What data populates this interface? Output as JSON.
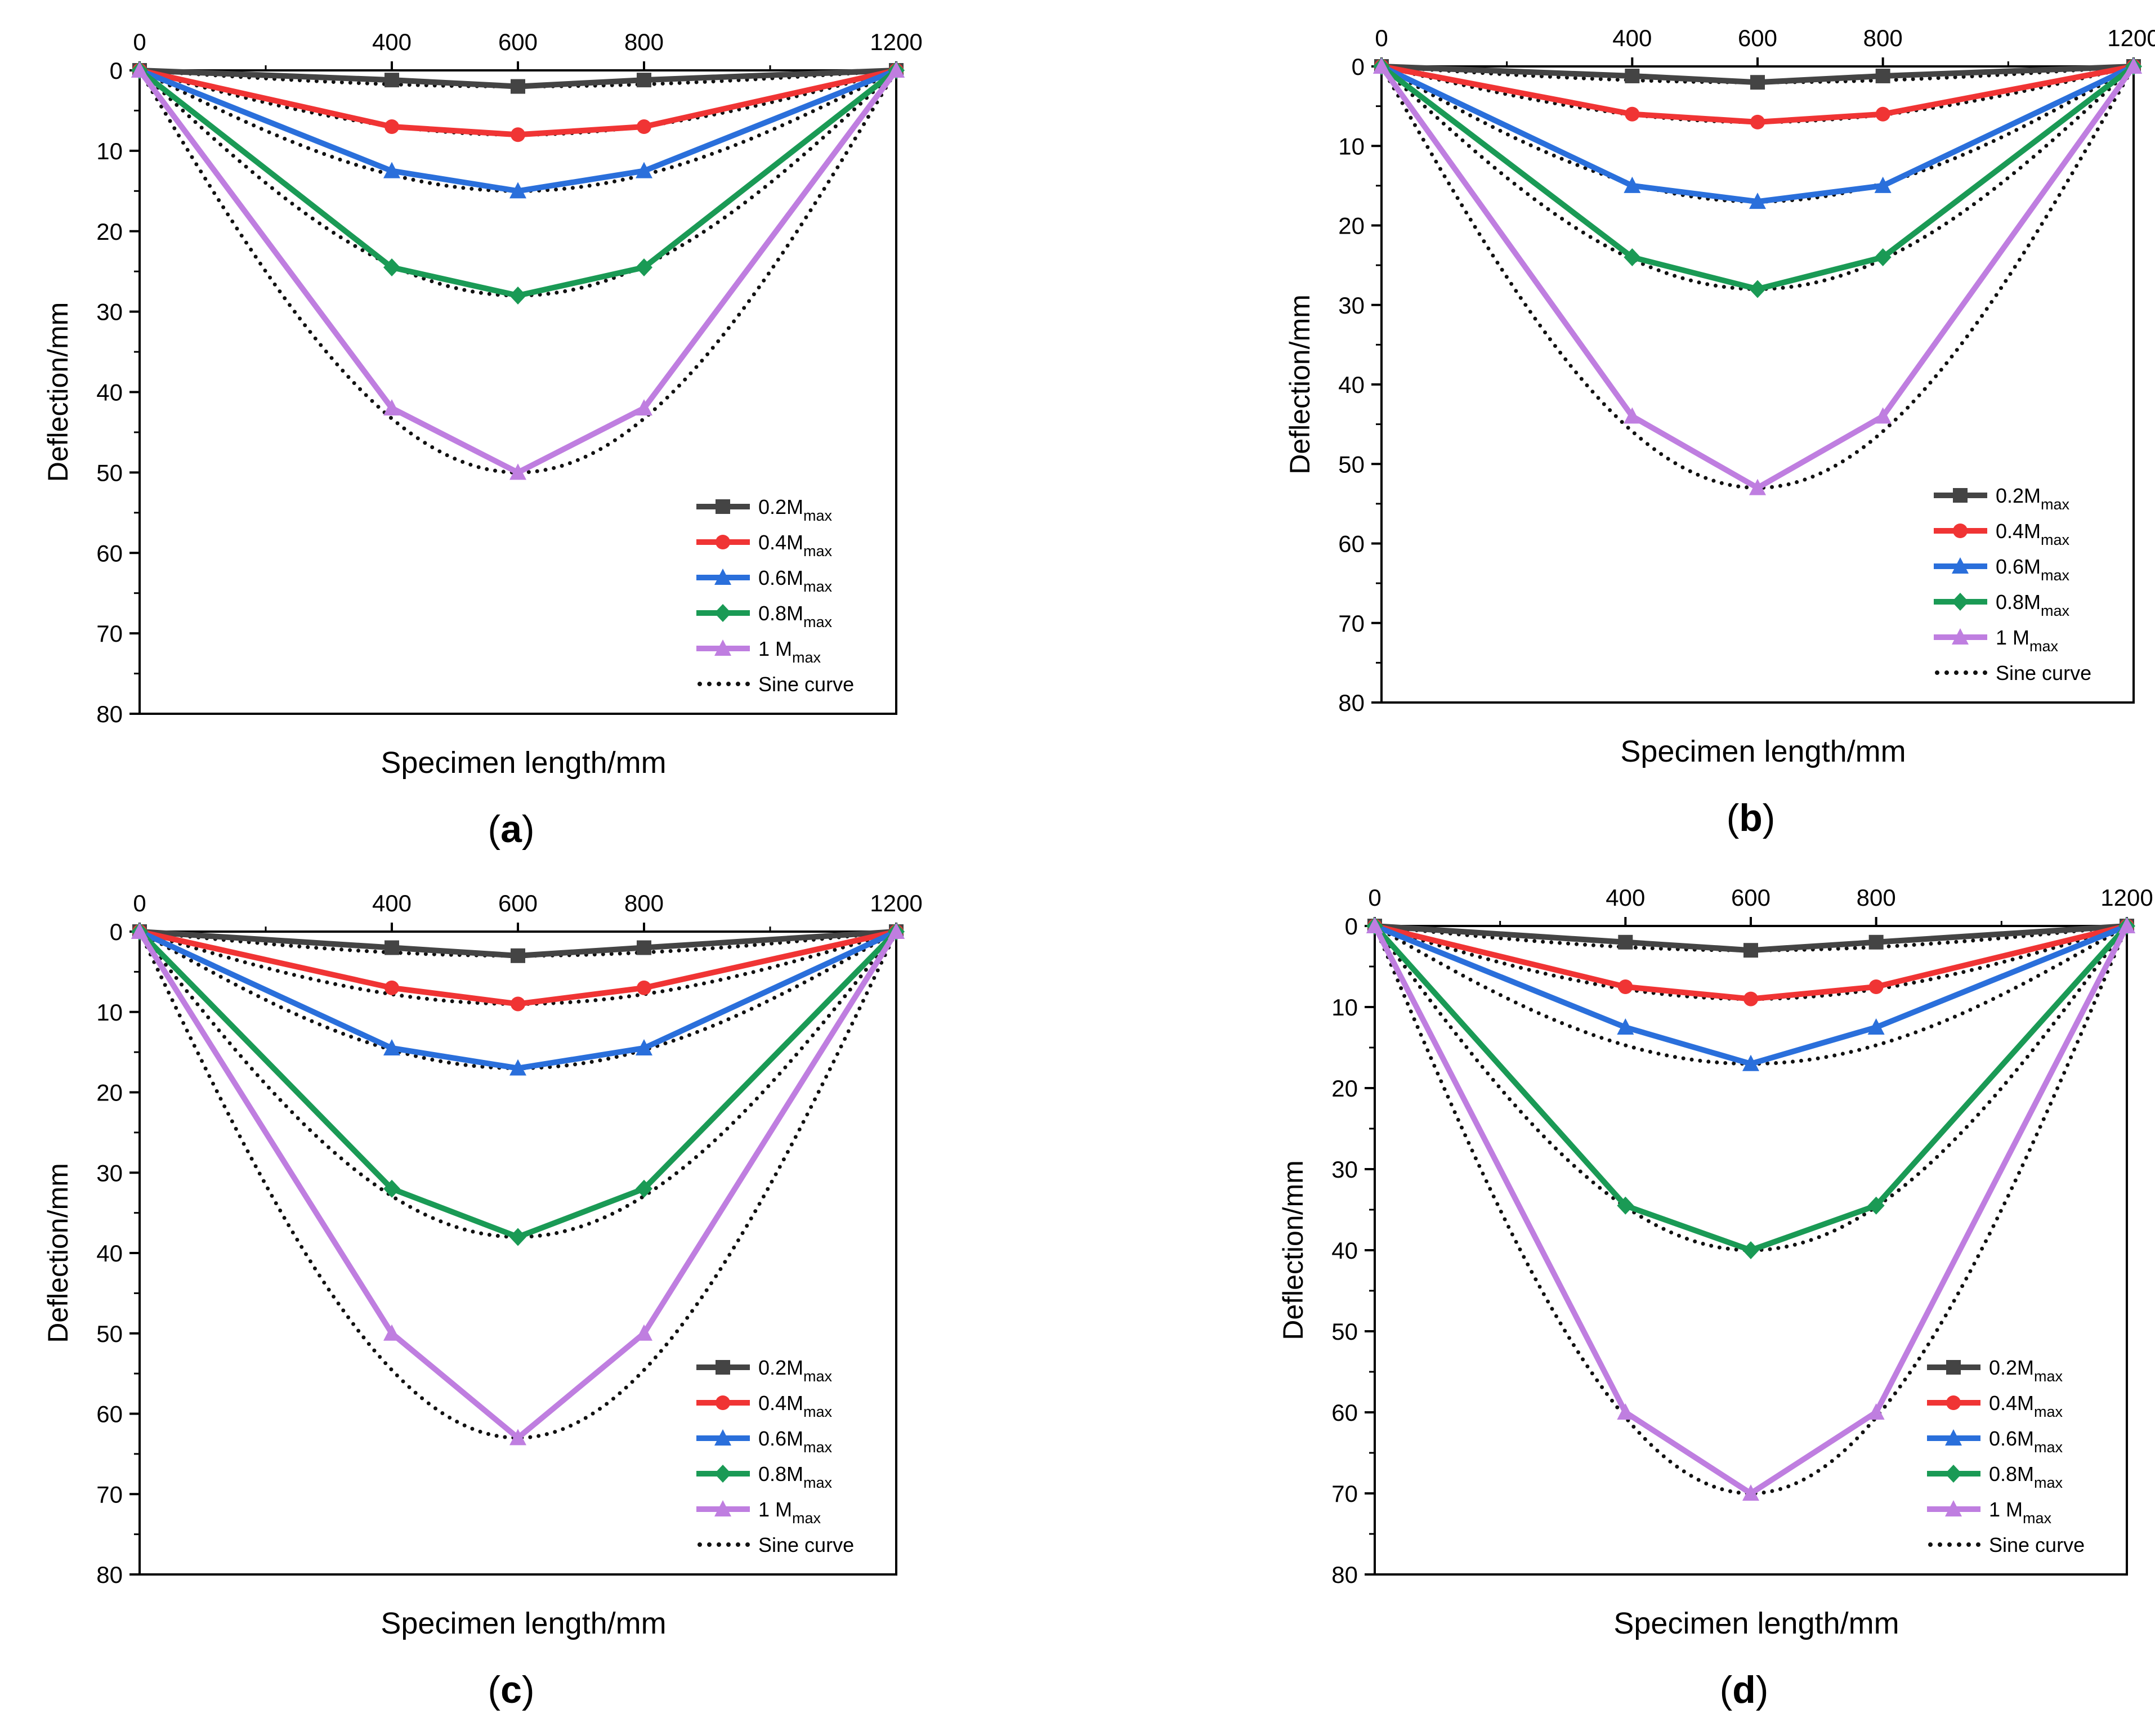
{
  "chart_data": [
    {
      "type": "line",
      "panel": "(a)",
      "panel_letter": "a",
      "xlabel": "Specimen length/mm",
      "ylabel": "Deflection/mm",
      "x_axis_position": "top",
      "y_axis_inverted": true,
      "xlim": [
        0,
        1200
      ],
      "ylim": [
        0,
        80
      ],
      "x_ticks": [
        0,
        400,
        600,
        800,
        1200
      ],
      "y_ticks": [
        0,
        10,
        20,
        30,
        40,
        50,
        60,
        70,
        80
      ],
      "legend_position": "bottom-right",
      "x": [
        0,
        400,
        600,
        800,
        1200
      ],
      "series": [
        {
          "name": "0.2Mmax",
          "base": "0.2M",
          "sub": "max",
          "color": "#444444",
          "marker": "square",
          "values": [
            0,
            1.2,
            2.0,
            1.2,
            0
          ]
        },
        {
          "name": "0.4Mmax",
          "base": "0.4M",
          "sub": "max",
          "color": "#f03434",
          "marker": "circle",
          "values": [
            0,
            7.0,
            8.0,
            7.0,
            0
          ]
        },
        {
          "name": "0.6Mmax",
          "base": "0.6M",
          "sub": "max",
          "color": "#2a6fdb",
          "marker": "triangle",
          "values": [
            0,
            12.5,
            15.0,
            12.5,
            0
          ]
        },
        {
          "name": "0.8Mmax",
          "base": "0.8M",
          "sub": "max",
          "color": "#1a9a55",
          "marker": "diamond",
          "values": [
            0,
            24.5,
            28.0,
            24.5,
            0
          ]
        },
        {
          "name": "1 Mmax",
          "base": "1 M",
          "sub": "max",
          "color": "#bf7ee0",
          "marker": "triangle",
          "values": [
            0,
            42.0,
            50.0,
            42.0,
            0
          ]
        }
      ],
      "sine_curve": {
        "name": "Sine curve",
        "color": "#111111",
        "amplitudes": [
          2.0,
          8.0,
          15.0,
          28.0,
          50.0
        ]
      }
    },
    {
      "type": "line",
      "panel": "(b)",
      "panel_letter": "b",
      "xlabel": "Specimen length/mm",
      "ylabel": "Deflection/mm",
      "x_axis_position": "top",
      "y_axis_inverted": true,
      "xlim": [
        0,
        1200
      ],
      "ylim": [
        0,
        80
      ],
      "x_ticks": [
        0,
        400,
        600,
        800,
        1200
      ],
      "y_ticks": [
        0,
        10,
        20,
        30,
        40,
        50,
        60,
        70,
        80
      ],
      "legend_position": "bottom-right",
      "x": [
        0,
        400,
        600,
        800,
        1200
      ],
      "series": [
        {
          "name": "0.2Mmax",
          "base": "0.2M",
          "sub": "max",
          "color": "#444444",
          "marker": "square",
          "values": [
            0,
            1.2,
            2.0,
            1.2,
            0
          ]
        },
        {
          "name": "0.4Mmax",
          "base": "0.4M",
          "sub": "max",
          "color": "#f03434",
          "marker": "circle",
          "values": [
            0,
            6.0,
            7.0,
            6.0,
            0
          ]
        },
        {
          "name": "0.6Mmax",
          "base": "0.6M",
          "sub": "max",
          "color": "#2a6fdb",
          "marker": "triangle",
          "values": [
            0,
            15.0,
            17.0,
            15.0,
            0
          ]
        },
        {
          "name": "0.8Mmax",
          "base": "0.8M",
          "sub": "max",
          "color": "#1a9a55",
          "marker": "diamond",
          "values": [
            0,
            24.0,
            28.0,
            24.0,
            0
          ]
        },
        {
          "name": "1 Mmax",
          "base": "1 M",
          "sub": "max",
          "color": "#bf7ee0",
          "marker": "triangle",
          "values": [
            0,
            44.0,
            53.0,
            44.0,
            0
          ]
        }
      ],
      "sine_curve": {
        "name": "Sine curve",
        "color": "#111111",
        "amplitudes": [
          2.0,
          7.0,
          17.0,
          28.0,
          53.0
        ]
      }
    },
    {
      "type": "line",
      "panel": "(c)",
      "panel_letter": "c",
      "xlabel": "Specimen length/mm",
      "ylabel": "Deflection/mm",
      "x_axis_position": "top",
      "y_axis_inverted": true,
      "xlim": [
        0,
        1200
      ],
      "ylim": [
        0,
        80
      ],
      "x_ticks": [
        0,
        400,
        600,
        800,
        1200
      ],
      "y_ticks": [
        0,
        10,
        20,
        30,
        40,
        50,
        60,
        70,
        80
      ],
      "legend_position": "bottom-right",
      "x": [
        0,
        400,
        600,
        800,
        1200
      ],
      "series": [
        {
          "name": "0.2Mmax",
          "base": "0.2M",
          "sub": "max",
          "color": "#444444",
          "marker": "square",
          "values": [
            0,
            2.0,
            3.0,
            2.0,
            0
          ]
        },
        {
          "name": "0.4Mmax",
          "base": "0.4M",
          "sub": "max",
          "color": "#f03434",
          "marker": "circle",
          "values": [
            0,
            7.0,
            9.0,
            7.0,
            0
          ]
        },
        {
          "name": "0.6Mmax",
          "base": "0.6M",
          "sub": "max",
          "color": "#2a6fdb",
          "marker": "triangle",
          "values": [
            0,
            14.5,
            17.0,
            14.5,
            0
          ]
        },
        {
          "name": "0.8Mmax",
          "base": "0.8M",
          "sub": "max",
          "color": "#1a9a55",
          "marker": "diamond",
          "values": [
            0,
            32.0,
            38.0,
            32.0,
            0
          ]
        },
        {
          "name": "1 Mmax",
          "base": "1 M",
          "sub": "max",
          "color": "#bf7ee0",
          "marker": "triangle",
          "values": [
            0,
            50.0,
            63.0,
            50.0,
            0
          ]
        }
      ],
      "sine_curve": {
        "name": "Sine curve",
        "color": "#111111",
        "amplitudes": [
          3.0,
          9.0,
          17.0,
          38.0,
          63.0
        ]
      }
    },
    {
      "type": "line",
      "panel": "(d)",
      "panel_letter": "d",
      "xlabel": "Specimen length/mm",
      "ylabel": "Deflection/mm",
      "x_axis_position": "top",
      "y_axis_inverted": true,
      "xlim": [
        0,
        1200
      ],
      "ylim": [
        0,
        80
      ],
      "x_ticks": [
        0,
        400,
        600,
        800,
        1200
      ],
      "y_ticks": [
        0,
        10,
        20,
        30,
        40,
        50,
        60,
        70,
        80
      ],
      "legend_position": "bottom-right",
      "x": [
        0,
        400,
        600,
        800,
        1200
      ],
      "series": [
        {
          "name": "0.2Mmax",
          "base": "0.2M",
          "sub": "max",
          "color": "#444444",
          "marker": "square",
          "values": [
            0,
            2.0,
            3.0,
            2.0,
            0
          ]
        },
        {
          "name": "0.4Mmax",
          "base": "0.4M",
          "sub": "max",
          "color": "#f03434",
          "marker": "circle",
          "values": [
            0,
            7.5,
            9.0,
            7.5,
            0
          ]
        },
        {
          "name": "0.6Mmax",
          "base": "0.6M",
          "sub": "max",
          "color": "#2a6fdb",
          "marker": "triangle",
          "values": [
            0,
            12.5,
            17.0,
            12.5,
            0
          ]
        },
        {
          "name": "0.8Mmax",
          "base": "0.8M",
          "sub": "max",
          "color": "#1a9a55",
          "marker": "diamond",
          "values": [
            0,
            34.5,
            40.0,
            34.5,
            0
          ]
        },
        {
          "name": "1 Mmax",
          "base": "1 M",
          "sub": "max",
          "color": "#bf7ee0",
          "marker": "triangle",
          "values": [
            0,
            60.0,
            70.0,
            60.0,
            0
          ]
        }
      ],
      "sine_curve": {
        "name": "Sine curve",
        "color": "#111111",
        "amplitudes": [
          3.0,
          9.0,
          17.0,
          40.0,
          70.0
        ]
      }
    }
  ]
}
